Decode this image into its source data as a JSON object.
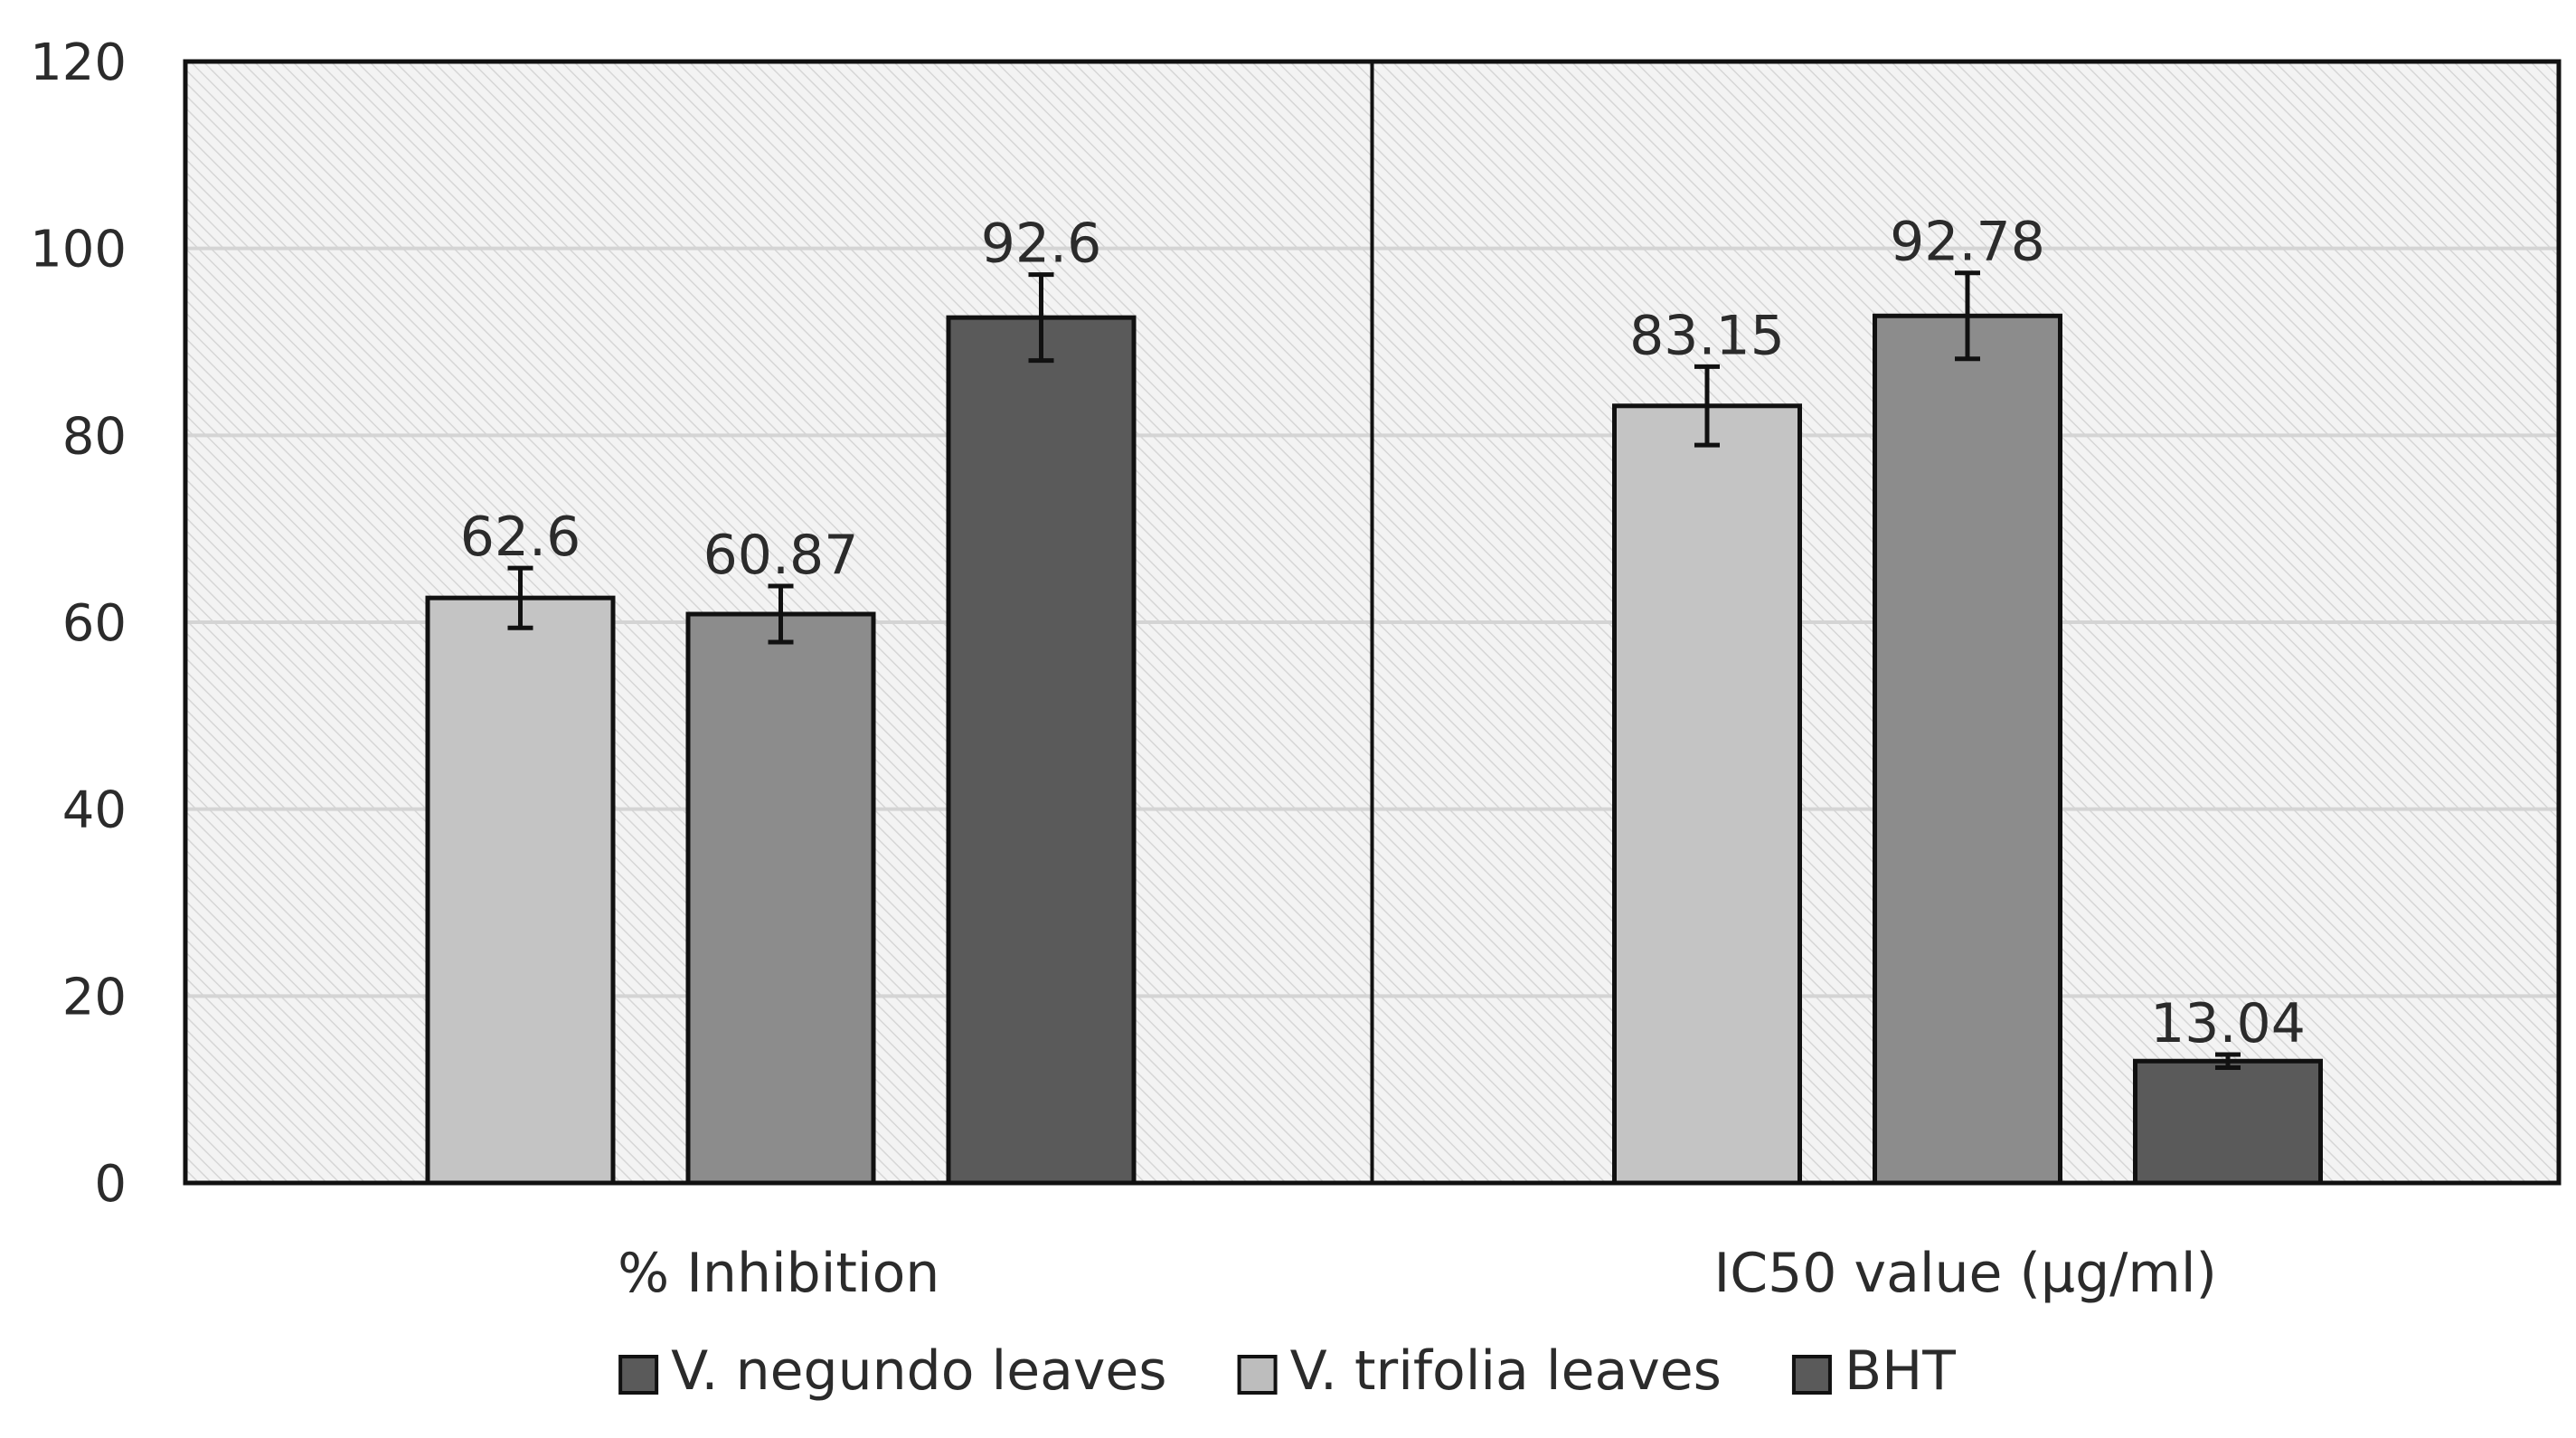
{
  "chart_data": {
    "type": "bar",
    "title": "",
    "xlabel": "",
    "ylabel": "",
    "ylim": [
      0,
      120
    ],
    "yticks": [
      0,
      20,
      40,
      60,
      80,
      100,
      120
    ],
    "grid": true,
    "legend_position": "bottom",
    "categories": [
      "% Inhibition",
      "IC50 value (µg/ml)"
    ],
    "series": [
      {
        "name": "V. negundo leaves",
        "bar_color": "#c4c4c4",
        "legend_color": "#5a5a5a",
        "values": [
          62.6,
          83.15
        ],
        "value_labels": [
          "62.6",
          "83.15"
        ],
        "errors": [
          3.2,
          4.2
        ]
      },
      {
        "name": "V. trifolia leaves",
        "bar_color": "#8c8c8c",
        "legend_color": "#bdbdbd",
        "values": [
          60.87,
          92.78
        ],
        "value_labels": [
          "60.87",
          "92.78"
        ],
        "errors": [
          3.0,
          4.6
        ]
      },
      {
        "name": "BHT",
        "bar_color": "#5a5a5a",
        "legend_color": "#5a5a5a",
        "values": [
          92.6,
          13.04
        ],
        "value_labels": [
          "92.6",
          "13.04"
        ],
        "errors": [
          4.6,
          0.7
        ]
      }
    ],
    "colors": {
      "frame": "#111111",
      "gridline": "#d4d4d4",
      "hatch_background": "#f3f3f3",
      "hatch_line": "#d6d6d6",
      "text": "#2b2b2b"
    }
  }
}
